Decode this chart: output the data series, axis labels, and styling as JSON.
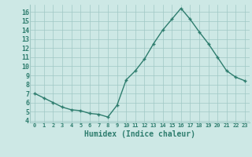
{
  "x": [
    0,
    1,
    2,
    3,
    4,
    5,
    6,
    7,
    8,
    9,
    10,
    11,
    12,
    13,
    14,
    15,
    16,
    17,
    18,
    19,
    20,
    21,
    22,
    23
  ],
  "y": [
    7.0,
    6.5,
    6.0,
    5.5,
    5.2,
    5.1,
    4.8,
    4.7,
    4.4,
    5.7,
    8.5,
    9.5,
    10.8,
    12.5,
    14.0,
    15.2,
    16.4,
    15.2,
    13.8,
    12.5,
    11.0,
    9.5,
    8.8,
    8.4
  ],
  "xlabel": "Humidex (Indice chaleur)",
  "line_color": "#2e7d6e",
  "marker": "+",
  "bg_color": "#cde8e5",
  "grid_color": "#a0c8c4",
  "tick_label_color": "#2e7d6e",
  "axis_label_color": "#2e7d6e",
  "xlim": [
    -0.5,
    23.5
  ],
  "ylim": [
    3.8,
    16.8
  ],
  "yticks": [
    4,
    5,
    6,
    7,
    8,
    9,
    10,
    11,
    12,
    13,
    14,
    15,
    16
  ],
  "xticks": [
    0,
    1,
    2,
    3,
    4,
    5,
    6,
    7,
    8,
    9,
    10,
    11,
    12,
    13,
    14,
    15,
    16,
    17,
    18,
    19,
    20,
    21,
    22,
    23
  ],
  "xtick_labels": [
    "0",
    "1",
    "2",
    "3",
    "4",
    "5",
    "6",
    "7",
    "8",
    "9",
    "10",
    "11",
    "12",
    "13",
    "14",
    "15",
    "16",
    "17",
    "18",
    "19",
    "20",
    "21",
    "22",
    "23"
  ],
  "line_width": 1.0,
  "marker_size": 3.5
}
